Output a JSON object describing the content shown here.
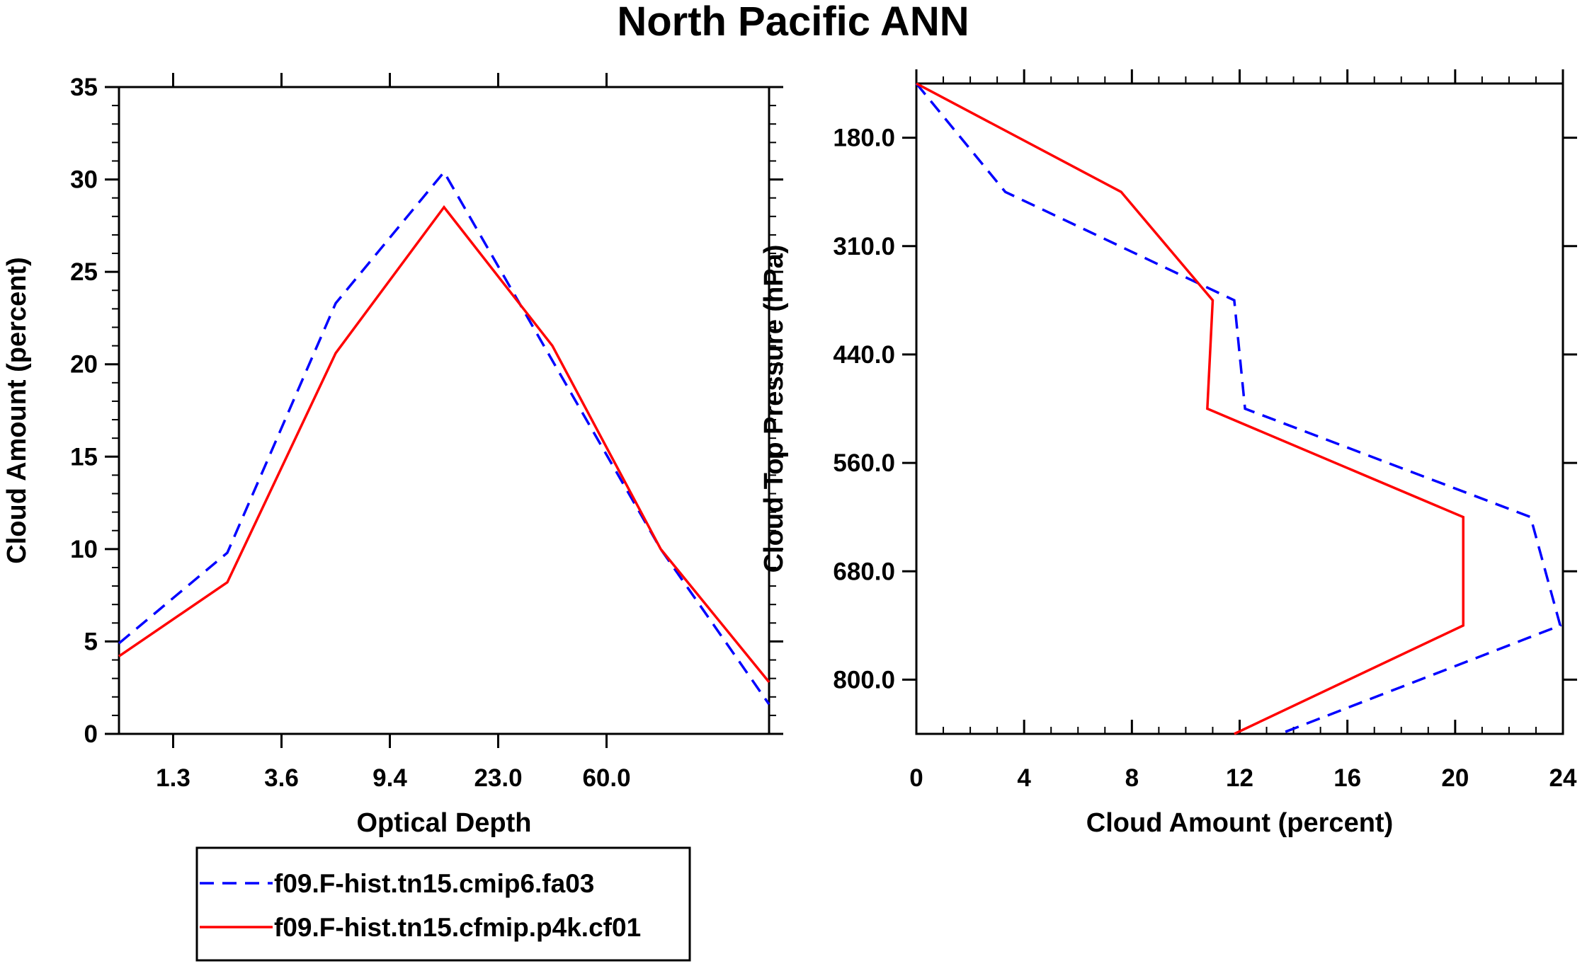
{
  "chart_data": [
    {
      "type": "line",
      "title": "North Pacific ANN",
      "xlabel": "Optical Depth",
      "ylabel": "Cloud Amount (percent)",
      "x_tick_labels": [
        "1.3",
        "3.6",
        "9.4",
        "23.0",
        "60.0"
      ],
      "y_ticks": [
        0,
        5,
        10,
        15,
        20,
        25,
        30,
        35
      ],
      "ylim": [
        0,
        35
      ],
      "x_bins": 7,
      "series": [
        {
          "name": "f09.F-hist.tn15.cmip6.fa03",
          "style": "dashed",
          "color": "#0000ff",
          "values": [
            4.9,
            9.8,
            23.3,
            30.4,
            20.2,
            10.0,
            1.6
          ]
        },
        {
          "name": "f09.F-hist.tn15.cfmip.p4k.cf01",
          "style": "solid",
          "color": "#ff0000",
          "values": [
            4.2,
            8.2,
            20.6,
            28.5,
            21.0,
            10.0,
            2.8
          ]
        }
      ]
    },
    {
      "type": "line",
      "xlabel": "Cloud Amount (percent)",
      "ylabel": "Cloud Top Pressure (hPa)",
      "x_ticks": [
        0,
        4,
        8,
        12,
        16,
        20,
        24
      ],
      "xlim": [
        0,
        24
      ],
      "y_tick_labels": [
        "180.0",
        "310.0",
        "440.0",
        "560.0",
        "680.0",
        "800.0"
      ],
      "y_levels": 7,
      "series": [
        {
          "name": "f09.F-hist.tn15.cmip6.fa03",
          "style": "dashed",
          "color": "#0000ff",
          "values": [
            0.0,
            3.3,
            11.8,
            12.2,
            22.8,
            23.9,
            13.5
          ]
        },
        {
          "name": "f09.F-hist.tn15.cfmip.p4k.cf01",
          "style": "solid",
          "color": "#ff0000",
          "values": [
            0.0,
            7.6,
            11.0,
            10.8,
            20.3,
            20.3,
            11.8
          ]
        }
      ]
    }
  ],
  "legend": {
    "items": [
      {
        "label": "f09.F-hist.tn15.cmip6.fa03",
        "style": "dashed",
        "color": "#0000ff"
      },
      {
        "label": "f09.F-hist.tn15.cfmip.p4k.cf01",
        "style": "solid",
        "color": "#ff0000"
      }
    ]
  }
}
